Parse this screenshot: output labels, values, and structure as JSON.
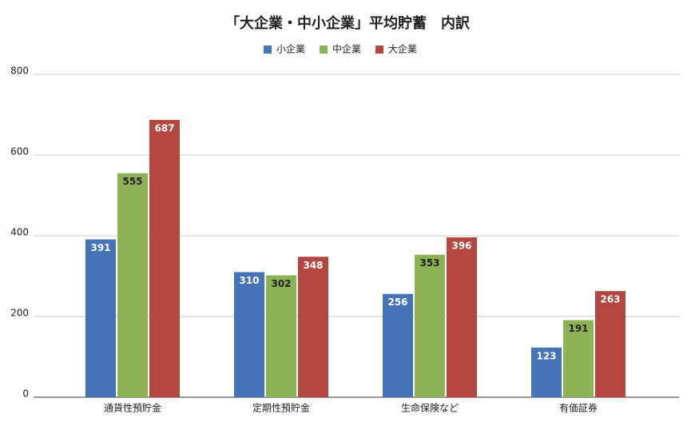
{
  "chart_data": {
    "type": "bar",
    "title": "「大企業・中小企業」平均貯蓄　内訳",
    "categories": [
      "通貨性預貯金",
      "定期性預貯金",
      "生命保険など",
      "有価証券"
    ],
    "series": [
      {
        "name": "小企業",
        "color": "#4672b8",
        "values": [
          391,
          310,
          256,
          123
        ]
      },
      {
        "name": "中企業",
        "color": "#8db255",
        "values": [
          555,
          302,
          353,
          191
        ]
      },
      {
        "name": "大企業",
        "color": "#b64642",
        "values": [
          687,
          348,
          396,
          263
        ]
      }
    ],
    "ylim": [
      0,
      800
    ],
    "yticks": [
      0,
      200,
      400,
      600,
      800
    ],
    "grid": true
  }
}
